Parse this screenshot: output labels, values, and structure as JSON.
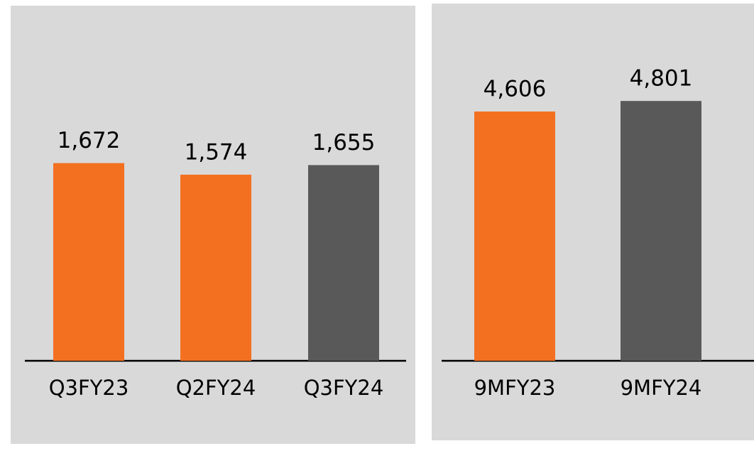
{
  "chart_data": [
    {
      "type": "bar",
      "categories": [
        "Q3FY23",
        "Q2FY24",
        "Q3FY24"
      ],
      "values": [
        1672,
        1574,
        1655
      ],
      "value_labels": [
        "1,672",
        "1,574",
        "1,655"
      ],
      "colors": [
        "#f37021",
        "#f37021",
        "#595959"
      ],
      "ylim": [
        0,
        2000
      ]
    },
    {
      "type": "bar",
      "categories": [
        "9MFY23",
        "9MFY24"
      ],
      "values": [
        4606,
        4801
      ],
      "value_labels": [
        "4,606",
        "4,801"
      ],
      "colors": [
        "#f37021",
        "#595959"
      ],
      "ylim": [
        0,
        5000
      ]
    }
  ]
}
